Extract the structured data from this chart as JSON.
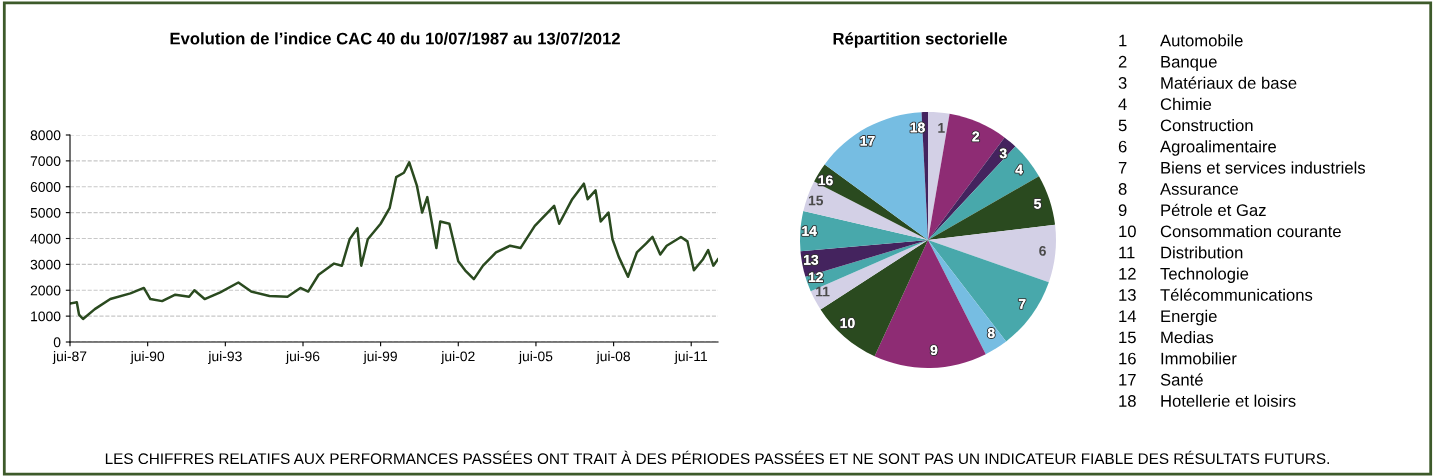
{
  "chart_data": [
    {
      "type": "line",
      "title": "Evolution de l’indice CAC 40 du 10/07/1987 au 13/07/2012",
      "x": [
        "1987-07-10",
        "1987-10-05",
        "1987-11-05",
        "1988-01-01",
        "1988-06-15",
        "1989-01-20",
        "1989-10-30",
        "1990-05-08",
        "1990-08-08",
        "1991-01-20",
        "1991-07-26",
        "1992-02-06",
        "1992-04-20",
        "1992-09-12",
        "1993-04-20",
        "1994-01-01",
        "1994-07-01",
        "1995-03-15",
        "1995-11-25",
        "1996-05-25",
        "1996-09-12",
        "1997-02-06",
        "1997-09-12",
        "1998-01-01",
        "1998-04-20",
        "1998-08-08",
        "1998-10-01",
        "1999-01-01",
        "1999-07-01",
        "1999-11-05",
        "2000-02-06",
        "2000-05-25",
        "2000-08-08",
        "2000-11-25",
        "2001-02-06",
        "2001-04-20",
        "2001-08-26",
        "2001-10-20",
        "2002-02-25",
        "2002-07-01",
        "2002-10-05",
        "2003-02-06",
        "2003-06-15",
        "2003-12-15",
        "2004-07-01",
        "2004-11-25",
        "2005-06-15",
        "2006-03-15",
        "2006-05-25",
        "2006-11-25",
        "2007-05-08",
        "2007-07-01",
        "2007-10-20",
        "2008-01-01",
        "2008-04-20",
        "2008-06-15",
        "2008-09-12",
        "2009-01-20",
        "2009-05-25",
        "2009-10-01",
        "2010-01-01",
        "2010-04-20",
        "2010-07-20",
        "2011-02-06",
        "2011-05-08",
        "2011-08-08",
        "2011-12-15",
        "2012-02-25",
        "2012-05-08",
        "2012-07-13"
      ],
      "series": [
        {
          "color": "#2a4a1f",
          "values": [
            1490,
            1540,
            1060,
            890,
            1270,
            1660,
            1880,
            2090,
            1660,
            1580,
            1830,
            1750,
            2000,
            1660,
            1920,
            2300,
            1950,
            1780,
            1750,
            2090,
            1950,
            2600,
            3030,
            2950,
            3970,
            4400,
            2950,
            3970,
            4570,
            5170,
            6370,
            6540,
            6940,
            6030,
            5000,
            5600,
            3630,
            4660,
            4570,
            3120,
            2770,
            2430,
            2950,
            3460,
            3720,
            3630,
            4490,
            5260,
            4570,
            5520,
            6120,
            5520,
            5860,
            4660,
            5000,
            3970,
            3290,
            2520,
            3460,
            3800,
            4060,
            3380,
            3720,
            4060,
            3890,
            2770,
            3200,
            3550,
            2950,
            3200
          ]
        }
      ],
      "xlim": [
        "1987-07-01",
        "2012-07-13"
      ],
      "xticks": [
        {
          "value": "1987-07-01",
          "label": "jui-87"
        },
        {
          "value": "1990-07-01",
          "label": "jui-90"
        },
        {
          "value": "1993-07-01",
          "label": "jui-93"
        },
        {
          "value": "1996-07-01",
          "label": "jui-96"
        },
        {
          "value": "1999-07-01",
          "label": "jui-99"
        },
        {
          "value": "2002-07-01",
          "label": "jui-02"
        },
        {
          "value": "2005-07-01",
          "label": "jui-05"
        },
        {
          "value": "2008-07-01",
          "label": "jui-08"
        },
        {
          "value": "2011-07-01",
          "label": "jui-11"
        }
      ],
      "ylim": [
        0,
        8000
      ],
      "yticks": [
        0,
        1000,
        2000,
        3000,
        4000,
        5000,
        6000,
        7000,
        8000
      ],
      "grid": "y",
      "line_style": "solid",
      "marker": "none",
      "legend": false,
      "annotations": [
        "LES CHIFFRES RELATIFS AUX PERFORMANCES PASSÉES ONT TRAIT À DES PÉRIODES PASSÉES ET NE SONT PAS UN INDICATEUR FIABLE DES RÉSULTATS FUTURS."
      ]
    },
    {
      "type": "pie",
      "title": "Répartition sectorielle",
      "categories": [
        "1",
        "2",
        "3",
        "4",
        "5",
        "6",
        "7",
        "8",
        "9",
        "10",
        "11",
        "12",
        "13",
        "14",
        "15",
        "16",
        "17",
        "18"
      ],
      "annotations": [
        "Automobile",
        "Banque",
        "Matériaux de base",
        "Chimie",
        "Construction",
        "Agroalimentaire",
        "Biens et services industriels",
        "Assurance",
        "Pétrole et Gaz",
        "Consommation courante",
        "Distribution",
        "Technologie",
        "Télécommunications",
        "Energie",
        "Medias",
        "Immobilier",
        "Santé",
        "Hotellerie et loisirs"
      ],
      "values": [
        2.7,
        7.5,
        1.75,
        4.75,
        6.4,
        7.25,
        9.2,
        3.0,
        14.3,
        9.0,
        2.6,
        1.9,
        3.25,
        5.05,
        3.9,
        2.5,
        14.15,
        0.8
      ],
      "colors": [
        "#d3d0e6",
        "#8e2c74",
        "#44235e",
        "#48a8ab",
        "#2a4a1f",
        "#d3d0e6",
        "#48a8ab",
        "#76bde2",
        "#8e2c74",
        "#2a4a1f",
        "#d3d0e6",
        "#48a8ab",
        "#44235e",
        "#48a8ab",
        "#d3d0e6",
        "#2a4a1f",
        "#76bde2",
        "#44235e"
      ]
    }
  ]
}
